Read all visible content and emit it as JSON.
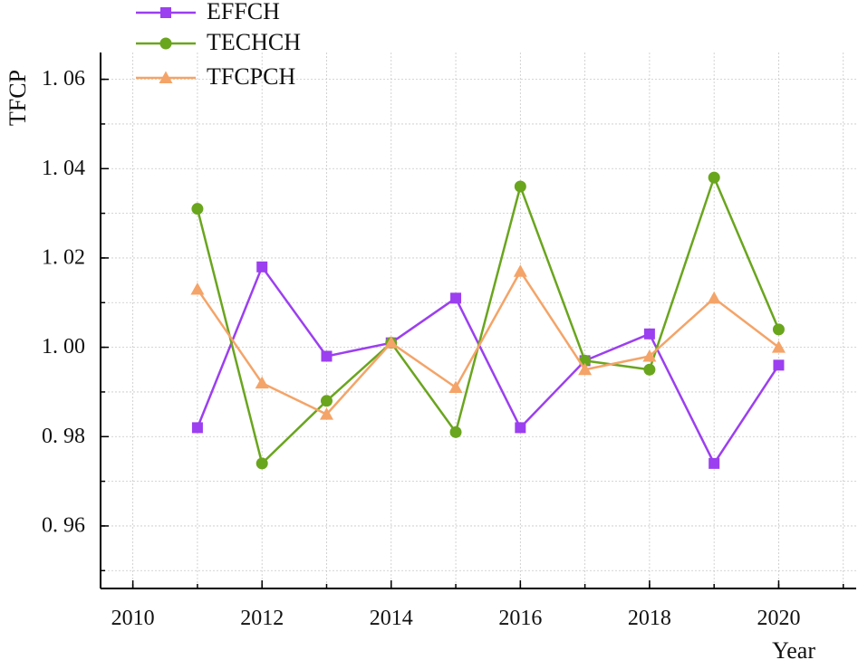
{
  "chart_data": {
    "type": "line",
    "title": "",
    "xlabel": "Year",
    "ylabel": "TFCP",
    "xlim": [
      2009.5,
      2021.2
    ],
    "ylim": [
      0.946,
      1.066
    ],
    "x_ticks": [
      2010,
      2012,
      2014,
      2016,
      2018,
      2020
    ],
    "y_ticks": [
      0.96,
      0.98,
      1.0,
      1.02,
      1.04,
      1.06
    ],
    "x_tick_labels": [
      "2010",
      "2012",
      "2014",
      "2016",
      "2018",
      "2020"
    ],
    "y_tick_labels": [
      "0. 96",
      "0. 98",
      "1. 00",
      "1. 02",
      "1. 04",
      "1. 06"
    ],
    "grid": true,
    "legend_position": "top-left",
    "x": [
      2011,
      2012,
      2013,
      2014,
      2015,
      2016,
      2017,
      2018,
      2019,
      2020
    ],
    "series": [
      {
        "name": "EFFCH",
        "color": "#9b3ff0",
        "marker": "square",
        "values": [
          0.982,
          1.018,
          0.998,
          1.001,
          1.011,
          0.982,
          0.997,
          1.003,
          0.974,
          0.996
        ]
      },
      {
        "name": "TECHCH",
        "color": "#6aa51e",
        "marker": "circle",
        "values": [
          1.031,
          0.974,
          0.988,
          1.001,
          0.981,
          1.036,
          0.997,
          0.995,
          1.038,
          1.004
        ]
      },
      {
        "name": "TFCPCH",
        "color": "#f4a468",
        "marker": "triangle",
        "values": [
          1.013,
          0.992,
          0.985,
          1.001,
          0.991,
          1.017,
          0.995,
          0.998,
          1.011,
          1.0
        ]
      }
    ]
  }
}
